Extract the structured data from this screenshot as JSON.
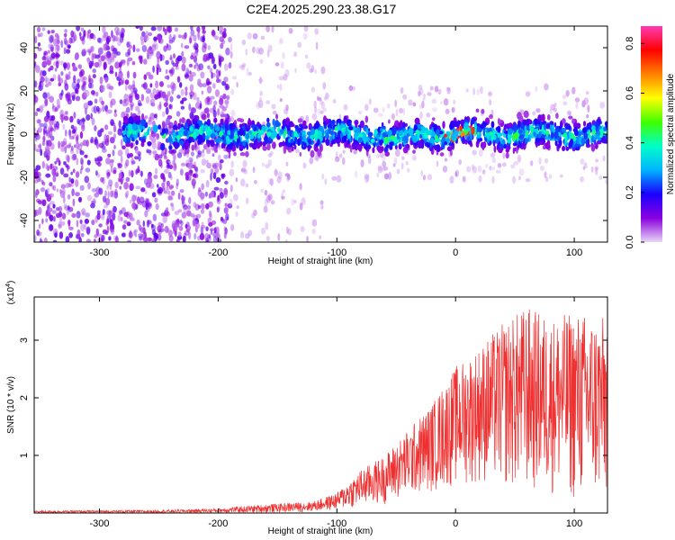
{
  "title": "C2E4.2025.290.23.38.G17",
  "chart_data": [
    {
      "type": "heatmap",
      "xlabel": "Height of straight line (km)",
      "ylabel": "Frequency (Hz)",
      "xlim": [
        -355,
        128
      ],
      "ylim": [
        -50,
        50
      ],
      "xticks": [
        -300,
        -200,
        -100,
        0,
        100
      ],
      "yticks": [
        -40,
        -20,
        0,
        20,
        40
      ],
      "xtick_labels": [
        "-300",
        "-200",
        "-100",
        "0",
        "100"
      ],
      "ytick_labels": [
        "-40",
        "-20",
        "0",
        "20",
        "40"
      ],
      "description_band": {
        "center_hz": 0,
        "half_width_hz": 6,
        "start_km": -280,
        "end_km": 128
      },
      "colorbar": {
        "label": "Normalized spectral amplitude",
        "range": [
          0,
          0.87
        ],
        "ticks": [
          0.0,
          0.2,
          0.4,
          0.6,
          0.8
        ],
        "tick_labels": [
          "0.0",
          "0.2",
          "0.4",
          "0.6",
          "0.8"
        ],
        "colormap": [
          "#e8d6f5",
          "#8a00e0",
          "#1a00ff",
          "#00b4ff",
          "#00ffc8",
          "#40ff00",
          "#ffff00",
          "#ff8000",
          "#ff0000",
          "#ff3cb4"
        ]
      }
    },
    {
      "type": "line",
      "xlabel": "Height of straight line (km)",
      "ylabel": "SNR (10 * v/v)",
      "multiplier_label": "(x10",
      "multiplier_exp": "4",
      "multiplier_close": ")",
      "xlim": [
        -355,
        128
      ],
      "ylim": [
        0,
        3.75
      ],
      "xticks": [
        -300,
        -200,
        -100,
        0,
        100
      ],
      "yticks": [
        1,
        2,
        3
      ],
      "xtick_labels": [
        "-300",
        "-200",
        "-100",
        "0",
        "100"
      ],
      "ytick_labels": [
        "1",
        "2",
        "3"
      ],
      "series": [
        {
          "name": "SNR",
          "color": "#ee3030",
          "envelope_x": [
            -355,
            -250,
            -200,
            -160,
            -120,
            -100,
            -80,
            -60,
            -40,
            -20,
            0,
            20,
            40,
            60,
            80,
            100,
            128
          ],
          "envelope_max": [
            0.04,
            0.05,
            0.08,
            0.15,
            0.2,
            0.35,
            0.75,
            1.0,
            1.45,
            1.9,
            2.55,
            2.9,
            3.3,
            3.6,
            3.4,
            3.5,
            3.4
          ],
          "envelope_min": [
            0.0,
            0.0,
            0.0,
            0.0,
            0.02,
            0.05,
            0.1,
            0.15,
            0.25,
            0.35,
            0.45,
            0.5,
            0.4,
            0.3,
            0.3,
            0.15,
            0.1
          ]
        }
      ]
    }
  ]
}
